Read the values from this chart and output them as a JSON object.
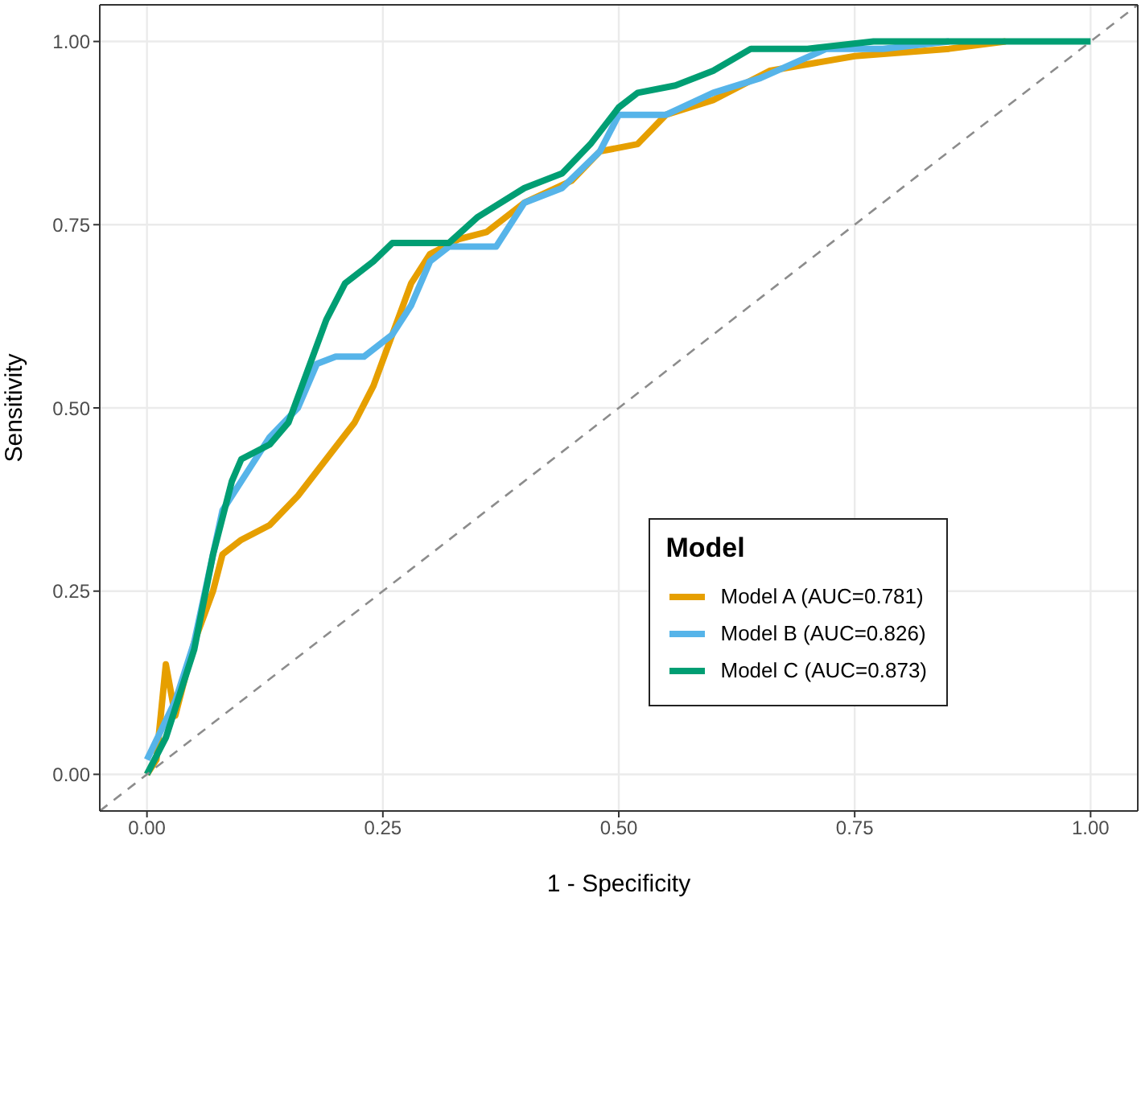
{
  "chart_data": {
    "type": "line",
    "xlabel": "1 - Specificity",
    "ylabel": "Sensitivity",
    "legend_title": "Model",
    "xlim": [
      -0.05,
      1.05
    ],
    "ylim": [
      -0.05,
      1.05
    ],
    "xticks": [
      {
        "value": 0,
        "label": "0.00"
      },
      {
        "value": 0.25,
        "label": "0.25"
      },
      {
        "value": 0.5,
        "label": "0.50"
      },
      {
        "value": 0.75,
        "label": "0.75"
      },
      {
        "value": 1,
        "label": "1.00"
      }
    ],
    "yticks": [
      {
        "value": 0,
        "label": "0.00"
      },
      {
        "value": 0.25,
        "label": "0.25"
      },
      {
        "value": 0.5,
        "label": "0.50"
      },
      {
        "value": 0.75,
        "label": "0.75"
      },
      {
        "value": 1,
        "label": "1.00"
      }
    ],
    "grid": true,
    "legend": "right",
    "marker": "none",
    "line_style": "solid",
    "series": [
      {
        "name": "Model A (AUC=0.781)",
        "color": "#e69f00",
        "x": [
          0,
          0.01,
          0.02,
          0.03,
          0.05,
          0.07,
          0.08,
          0.1,
          0.13,
          0.16,
          0.19,
          0.22,
          0.24,
          0.26,
          0.28,
          0.3,
          0.33,
          0.36,
          0.4,
          0.45,
          0.48,
          0.52,
          0.55,
          0.6,
          0.66,
          0.75,
          0.85,
          0.91
        ],
        "values": [
          0,
          0.02,
          0.15,
          0.08,
          0.18,
          0.25,
          0.3,
          0.32,
          0.34,
          0.38,
          0.43,
          0.48,
          0.53,
          0.6,
          0.67,
          0.71,
          0.73,
          0.74,
          0.78,
          0.81,
          0.85,
          0.86,
          0.9,
          0.92,
          0.96,
          0.98,
          0.99,
          1.0
        ]
      },
      {
        "name": "Model B (AUC=0.826)",
        "color": "#56b4e9",
        "x": [
          0,
          0.03,
          0.05,
          0.07,
          0.08,
          0.1,
          0.13,
          0.16,
          0.18,
          0.2,
          0.23,
          0.26,
          0.28,
          0.3,
          0.32,
          0.37,
          0.4,
          0.44,
          0.48,
          0.5,
          0.55,
          0.6,
          0.65,
          0.72,
          0.78,
          0.85
        ],
        "values": [
          0.02,
          0.1,
          0.18,
          0.3,
          0.36,
          0.4,
          0.46,
          0.5,
          0.56,
          0.57,
          0.57,
          0.6,
          0.64,
          0.7,
          0.72,
          0.72,
          0.78,
          0.8,
          0.85,
          0.9,
          0.9,
          0.93,
          0.95,
          0.99,
          0.99,
          1.0
        ]
      },
      {
        "name": "Model C (AUC=0.873)",
        "color": "#009e73",
        "x": [
          0,
          0.02,
          0.05,
          0.07,
          0.09,
          0.1,
          0.13,
          0.15,
          0.17,
          0.19,
          0.21,
          0.24,
          0.26,
          0.32,
          0.35,
          0.4,
          0.44,
          0.47,
          0.5,
          0.52,
          0.56,
          0.6,
          0.64,
          0.7,
          0.77,
          1.0
        ],
        "values": [
          0,
          0.05,
          0.17,
          0.3,
          0.4,
          0.43,
          0.45,
          0.48,
          0.55,
          0.62,
          0.67,
          0.7,
          0.725,
          0.725,
          0.76,
          0.8,
          0.82,
          0.86,
          0.91,
          0.93,
          0.94,
          0.96,
          0.99,
          0.99,
          1.0,
          1.0
        ]
      },
      {
        "color": "#8c8c8c",
        "line_style": "dashed",
        "x": [
          -0.05,
          1.05
        ],
        "values": [
          -0.05,
          1.05
        ]
      }
    ]
  }
}
